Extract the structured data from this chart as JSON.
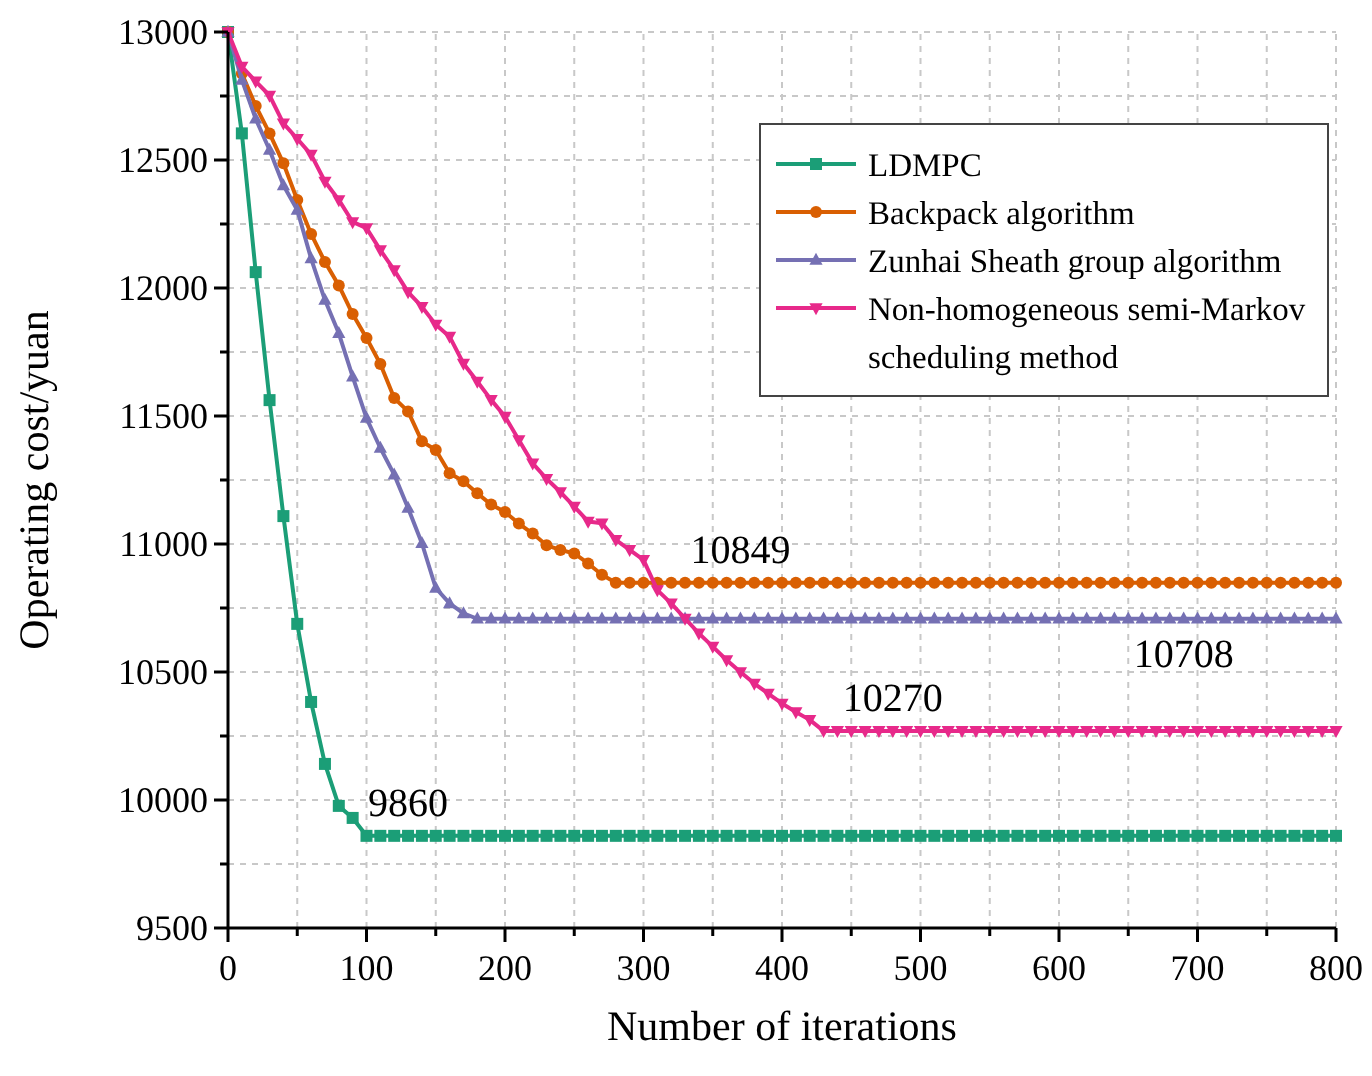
{
  "chart_data": {
    "type": "line",
    "xlabel": "Number of iterations",
    "ylabel": "Operating cost/yuan",
    "x": [
      0,
      10,
      20,
      30,
      40,
      50,
      60,
      70,
      80,
      90,
      100,
      110,
      120,
      130,
      140,
      150,
      160,
      170,
      180,
      190,
      200,
      210,
      220,
      230,
      240,
      250,
      260,
      270,
      280,
      290,
      300,
      310,
      320,
      330,
      340,
      350,
      360,
      370,
      380,
      390,
      400,
      410,
      420,
      430,
      440,
      450,
      460,
      470,
      480,
      490,
      500,
      510,
      520,
      530,
      540,
      550,
      560,
      570,
      580,
      590,
      600,
      610,
      620,
      630,
      640,
      650,
      660,
      670,
      680,
      690,
      700,
      710,
      720,
      730,
      740,
      750,
      760,
      770,
      780,
      790,
      800
    ],
    "series": [
      {
        "name": "LDMPC",
        "color": "#1b9e77",
        "marker": "square",
        "values": [
          13000,
          12604,
          12062,
          11562,
          11109,
          10688,
          10383,
          10141,
          9977,
          9930,
          9860,
          9860,
          9860,
          9860,
          9860,
          9860,
          9860,
          9860,
          9860,
          9860,
          9860,
          9860,
          9860,
          9860,
          9860,
          9860,
          9860,
          9860,
          9860,
          9860,
          9860,
          9860,
          9860,
          9860,
          9860,
          9860,
          9860,
          9860,
          9860,
          9860,
          9860,
          9860,
          9860,
          9860,
          9860,
          9860,
          9860,
          9860,
          9860,
          9860,
          9860,
          9860,
          9860,
          9860,
          9860,
          9860,
          9860,
          9860,
          9860,
          9860,
          9860,
          9860,
          9860,
          9860,
          9860,
          9860,
          9860,
          9860,
          9860,
          9860,
          9860,
          9860,
          9860,
          9860,
          9860,
          9860,
          9860,
          9860,
          9860,
          9860,
          9860
        ]
      },
      {
        "name": "Backpack algorithm",
        "color": "#d95f02",
        "marker": "circle",
        "values": [
          13000,
          12838,
          12711,
          12604,
          12487,
          12344,
          12211,
          12102,
          12010,
          11898,
          11805,
          11703,
          11570,
          11518,
          11401,
          11367,
          11276,
          11245,
          11198,
          11154,
          11125,
          11080,
          11041,
          10995,
          10977,
          10963,
          10924,
          10880,
          10849,
          10849,
          10849,
          10849,
          10849,
          10849,
          10849,
          10849,
          10849,
          10849,
          10849,
          10849,
          10849,
          10849,
          10849,
          10849,
          10849,
          10849,
          10849,
          10849,
          10849,
          10849,
          10849,
          10849,
          10849,
          10849,
          10849,
          10849,
          10849,
          10849,
          10849,
          10849,
          10849,
          10849,
          10849,
          10849,
          10849,
          10849,
          10849,
          10849,
          10849,
          10849,
          10849,
          10849,
          10849,
          10849,
          10849,
          10849,
          10849,
          10849,
          10849,
          10849,
          10849
        ]
      },
      {
        "name": "Zunhai Sheath group algorithm",
        "color": "#7570b3",
        "marker": "triangle",
        "values": [
          13000,
          12813,
          12661,
          12539,
          12401,
          12305,
          12115,
          11953,
          11823,
          11654,
          11492,
          11375,
          11271,
          11141,
          11003,
          10828,
          10768,
          10729,
          10708,
          10708,
          10708,
          10708,
          10708,
          10708,
          10708,
          10708,
          10708,
          10708,
          10708,
          10708,
          10708,
          10708,
          10708,
          10708,
          10708,
          10708,
          10708,
          10708,
          10708,
          10708,
          10708,
          10708,
          10708,
          10708,
          10708,
          10708,
          10708,
          10708,
          10708,
          10708,
          10708,
          10708,
          10708,
          10708,
          10708,
          10708,
          10708,
          10708,
          10708,
          10708,
          10708,
          10708,
          10708,
          10708,
          10708,
          10708,
          10708,
          10708,
          10708,
          10708,
          10708,
          10708,
          10708,
          10708,
          10708,
          10708,
          10708,
          10708,
          10708,
          10708,
          10708
        ]
      },
      {
        "name": "Non-homogeneous semi-Markov scheduling method",
        "color": "#e7298a",
        "marker": "triangle-down",
        "values": [
          13000,
          12865,
          12807,
          12752,
          12643,
          12583,
          12521,
          12416,
          12344,
          12258,
          12234,
          12148,
          12070,
          11984,
          11927,
          11857,
          11810,
          11705,
          11635,
          11563,
          11498,
          11406,
          11315,
          11255,
          11203,
          11146,
          11088,
          11081,
          11016,
          10977,
          10938,
          10820,
          10768,
          10709,
          10651,
          10599,
          10547,
          10500,
          10455,
          10416,
          10377,
          10344,
          10313,
          10270,
          10270,
          10270,
          10270,
          10270,
          10270,
          10270,
          10270,
          10270,
          10270,
          10270,
          10270,
          10270,
          10270,
          10270,
          10270,
          10270,
          10270,
          10270,
          10270,
          10270,
          10270,
          10270,
          10270,
          10270,
          10270,
          10270,
          10270,
          10270,
          10270,
          10270,
          10270,
          10270,
          10270,
          10270,
          10270,
          10270,
          10270
        ]
      }
    ],
    "xlim": [
      0,
      800
    ],
    "xticks": [
      0,
      {
        "value": 50,
        "label": null
      },
      100,
      {
        "value": 150,
        "label": null
      },
      200,
      {
        "value": 250,
        "label": null
      },
      300,
      {
        "value": 350,
        "label": null
      },
      400,
      {
        "value": 450,
        "label": null
      },
      500,
      {
        "value": 550,
        "label": null
      },
      600,
      {
        "value": 650,
        "label": null
      },
      700,
      {
        "value": 750,
        "label": null
      },
      800
    ],
    "ylim": [
      9500,
      13000
    ],
    "yticks": [
      9500,
      {
        "value": 9750,
        "label": null
      },
      10000,
      {
        "value": 10250,
        "label": null
      },
      10500,
      {
        "value": 10750,
        "label": null
      },
      11000,
      {
        "value": 11250,
        "label": null
      },
      11500,
      {
        "value": 11750,
        "label": null
      },
      12000,
      {
        "value": 12250,
        "label": null
      },
      12500,
      {
        "value": 12750,
        "label": null
      },
      13000
    ],
    "grid": true,
    "legend": "top right",
    "line_style": "solid",
    "annotations": [
      {
        "text": "9860",
        "x": 130,
        "y": 9860
      },
      {
        "text": "10849",
        "x": 370,
        "y": 10849
      },
      {
        "text": "10708",
        "x": 690,
        "y": 10708
      },
      {
        "text": "10270",
        "x": 480,
        "y": 10270
      }
    ]
  }
}
